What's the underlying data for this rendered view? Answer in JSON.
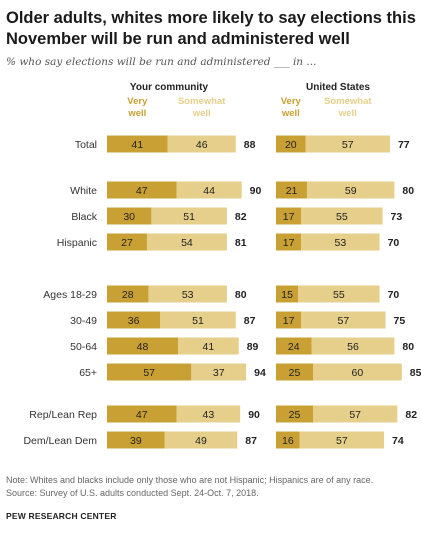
{
  "title": "Older adults, whites more likely to say elections this November will be run and administered well",
  "subtitle": "% who say elections will be run and administered ___ in ...",
  "note": "Note: Whites and blacks include only those who are not Hispanic; Hispanics are of any race.",
  "source": "Source: Survey of U.S. adults conducted Sept. 24-Oct. 7, 2018.",
  "org": "PEW RESEARCH CENTER",
  "colors": {
    "very_well": "#c9a033",
    "somewhat_well": "#e6cf8a"
  },
  "chart_data": [
    {
      "type": "bar",
      "stacked": true,
      "orientation": "horizontal",
      "title": "Your community",
      "legend": [
        "Very well",
        "Somewhat well"
      ],
      "categories": [
        "Total",
        "White",
        "Black",
        "Hispanic",
        "Ages 18-29",
        "30-49",
        "50-64",
        "65+",
        "Rep/Lean Rep",
        "Dem/Lean Dem"
      ],
      "series": [
        {
          "name": "Very well",
          "values": [
            41,
            47,
            30,
            27,
            28,
            36,
            48,
            57,
            47,
            39
          ]
        },
        {
          "name": "Somewhat well",
          "values": [
            46,
            44,
            51,
            54,
            53,
            51,
            41,
            37,
            43,
            49
          ]
        }
      ],
      "totals": [
        88,
        90,
        82,
        81,
        80,
        87,
        89,
        94,
        90,
        87
      ]
    },
    {
      "type": "bar",
      "stacked": true,
      "orientation": "horizontal",
      "title": "United States",
      "legend": [
        "Very well",
        "Somewhat well"
      ],
      "categories": [
        "Total",
        "White",
        "Black",
        "Hispanic",
        "Ages 18-29",
        "30-49",
        "50-64",
        "65+",
        "Rep/Lean Rep",
        "Dem/Lean Dem"
      ],
      "series": [
        {
          "name": "Very well",
          "values": [
            20,
            21,
            17,
            17,
            15,
            17,
            24,
            25,
            25,
            16
          ]
        },
        {
          "name": "Somewhat well",
          "values": [
            57,
            59,
            55,
            53,
            55,
            57,
            56,
            60,
            57,
            57
          ]
        }
      ],
      "totals": [
        77,
        80,
        73,
        70,
        70,
        75,
        80,
        85,
        82,
        74
      ]
    }
  ]
}
